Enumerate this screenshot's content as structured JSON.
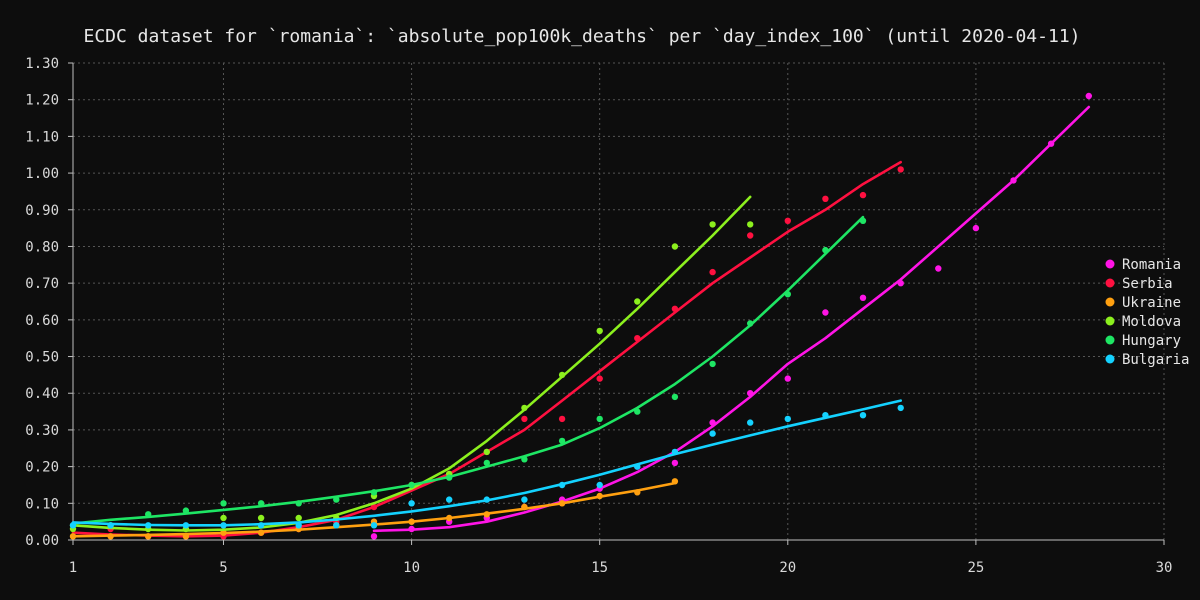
{
  "chart_data": {
    "type": "scatter",
    "title": "ECDC dataset for `romania`: `absolute_pop100k_deaths` per `day_index_100` (until 2020-04-11)",
    "xlabel": "",
    "ylabel": "",
    "xlim": [
      1,
      30
    ],
    "ylim": [
      0,
      1.3
    ],
    "x_ticks": [
      1,
      5,
      10,
      15,
      20,
      25,
      30
    ],
    "y_ticks": [
      0,
      0.1,
      0.2,
      0.3,
      0.4,
      0.5,
      0.6,
      0.7,
      0.8,
      0.9,
      1.0,
      1.1,
      1.2,
      1.3
    ],
    "y_tick_labels": [
      "0.00",
      "0.10",
      "0.20",
      "0.30",
      "0.40",
      "0.50",
      "0.60",
      "0.70",
      "0.80",
      "0.90",
      "1.00",
      "1.10",
      "1.20",
      "1.30"
    ],
    "grid": true,
    "legend_position": "right",
    "series": [
      {
        "name": "Romania",
        "color": "#ff14e6",
        "points": [
          [
            9,
            0.01
          ],
          [
            10,
            0.03
          ],
          [
            11,
            0.05
          ],
          [
            12,
            0.06
          ],
          [
            13,
            0.09
          ],
          [
            14,
            0.11
          ],
          [
            15,
            0.14
          ],
          [
            16,
            0.2
          ],
          [
            17,
            0.21
          ],
          [
            18,
            0.32
          ],
          [
            19,
            0.4
          ],
          [
            20,
            0.44
          ],
          [
            21,
            0.62
          ],
          [
            22,
            0.66
          ],
          [
            23,
            0.7
          ],
          [
            24,
            0.74
          ],
          [
            25,
            0.85
          ],
          [
            26,
            0.98
          ],
          [
            27,
            1.08
          ],
          [
            28,
            1.21
          ]
        ],
        "trend": [
          [
            9,
            0.025
          ],
          [
            10,
            0.028
          ],
          [
            11,
            0.035
          ],
          [
            12,
            0.05
          ],
          [
            13,
            0.075
          ],
          [
            14,
            0.105
          ],
          [
            15,
            0.14
          ],
          [
            16,
            0.185
          ],
          [
            17,
            0.24
          ],
          [
            18,
            0.31
          ],
          [
            19,
            0.39
          ],
          [
            20,
            0.48
          ],
          [
            21,
            0.55
          ],
          [
            22,
            0.63
          ],
          [
            23,
            0.71
          ],
          [
            24,
            0.8
          ],
          [
            25,
            0.89
          ],
          [
            26,
            0.98
          ],
          [
            27,
            1.08
          ],
          [
            28,
            1.18
          ]
        ]
      },
      {
        "name": "Serbia",
        "color": "#ff1040",
        "points": [
          [
            1,
            0.04
          ],
          [
            2,
            0.03
          ],
          [
            3,
            0.01
          ],
          [
            4,
            0.01
          ],
          [
            5,
            0.01
          ],
          [
            6,
            0.02
          ],
          [
            7,
            0.03
          ],
          [
            8,
            0.05
          ],
          [
            9,
            0.09
          ],
          [
            10,
            0.15
          ],
          [
            11,
            0.18
          ],
          [
            12,
            0.24
          ],
          [
            13,
            0.33
          ],
          [
            14,
            0.33
          ],
          [
            15,
            0.44
          ],
          [
            16,
            0.55
          ],
          [
            17,
            0.63
          ],
          [
            18,
            0.73
          ],
          [
            19,
            0.83
          ],
          [
            20,
            0.87
          ],
          [
            21,
            0.93
          ],
          [
            22,
            0.94
          ],
          [
            23,
            1.01
          ]
        ],
        "trend": [
          [
            1,
            0.02
          ],
          [
            2,
            0.015
          ],
          [
            3,
            0.012
          ],
          [
            4,
            0.01
          ],
          [
            5,
            0.012
          ],
          [
            6,
            0.02
          ],
          [
            7,
            0.035
          ],
          [
            8,
            0.055
          ],
          [
            9,
            0.09
          ],
          [
            10,
            0.135
          ],
          [
            11,
            0.18
          ],
          [
            12,
            0.24
          ],
          [
            13,
            0.3
          ],
          [
            14,
            0.38
          ],
          [
            15,
            0.46
          ],
          [
            16,
            0.54
          ],
          [
            17,
            0.62
          ],
          [
            18,
            0.7
          ],
          [
            19,
            0.77
          ],
          [
            20,
            0.84
          ],
          [
            21,
            0.9
          ],
          [
            22,
            0.97
          ],
          [
            23,
            1.03
          ]
        ]
      },
      {
        "name": "Ukraine",
        "color": "#ffa010",
        "points": [
          [
            1,
            0.01
          ],
          [
            2,
            0.01
          ],
          [
            3,
            0.01
          ],
          [
            4,
            0.01
          ],
          [
            5,
            0.02
          ],
          [
            6,
            0.02
          ],
          [
            7,
            0.03
          ],
          [
            8,
            0.04
          ],
          [
            9,
            0.05
          ],
          [
            10,
            0.05
          ],
          [
            11,
            0.06
          ],
          [
            12,
            0.07
          ],
          [
            13,
            0.09
          ],
          [
            14,
            0.1
          ],
          [
            15,
            0.12
          ],
          [
            16,
            0.13
          ],
          [
            17,
            0.16
          ]
        ],
        "trend": [
          [
            1,
            0.01
          ],
          [
            2,
            0.012
          ],
          [
            3,
            0.014
          ],
          [
            4,
            0.016
          ],
          [
            5,
            0.019
          ],
          [
            6,
            0.023
          ],
          [
            7,
            0.028
          ],
          [
            8,
            0.035
          ],
          [
            9,
            0.042
          ],
          [
            10,
            0.05
          ],
          [
            11,
            0.06
          ],
          [
            12,
            0.072
          ],
          [
            13,
            0.085
          ],
          [
            14,
            0.1
          ],
          [
            15,
            0.118
          ],
          [
            16,
            0.135
          ],
          [
            17,
            0.155
          ]
        ]
      },
      {
        "name": "Moldova",
        "color": "#8cf01e",
        "points": [
          [
            1,
            0.03
          ],
          [
            2,
            0.04
          ],
          [
            3,
            0.03
          ],
          [
            4,
            0.03
          ],
          [
            5,
            0.06
          ],
          [
            6,
            0.06
          ],
          [
            7,
            0.06
          ],
          [
            8,
            0.06
          ],
          [
            9,
            0.12
          ],
          [
            10,
            0.15
          ],
          [
            11,
            0.18
          ],
          [
            12,
            0.24
          ],
          [
            13,
            0.36
          ],
          [
            14,
            0.45
          ],
          [
            15,
            0.57
          ],
          [
            16,
            0.65
          ],
          [
            17,
            0.8
          ],
          [
            18,
            0.86
          ],
          [
            19,
            0.86
          ]
        ],
        "trend": [
          [
            1,
            0.04
          ],
          [
            2,
            0.033
          ],
          [
            3,
            0.028
          ],
          [
            4,
            0.026
          ],
          [
            5,
            0.028
          ],
          [
            6,
            0.034
          ],
          [
            7,
            0.047
          ],
          [
            8,
            0.068
          ],
          [
            9,
            0.1
          ],
          [
            10,
            0.14
          ],
          [
            11,
            0.195
          ],
          [
            12,
            0.27
          ],
          [
            13,
            0.355
          ],
          [
            14,
            0.445
          ],
          [
            15,
            0.535
          ],
          [
            16,
            0.63
          ],
          [
            17,
            0.73
          ],
          [
            18,
            0.83
          ],
          [
            19,
            0.935
          ]
        ]
      },
      {
        "name": "Hungary",
        "color": "#1ee664",
        "points": [
          [
            1,
            0.04
          ],
          [
            2,
            0.04
          ],
          [
            3,
            0.07
          ],
          [
            4,
            0.08
          ],
          [
            5,
            0.1
          ],
          [
            6,
            0.1
          ],
          [
            7,
            0.1
          ],
          [
            8,
            0.11
          ],
          [
            9,
            0.13
          ],
          [
            10,
            0.15
          ],
          [
            11,
            0.17
          ],
          [
            12,
            0.21
          ],
          [
            13,
            0.22
          ],
          [
            14,
            0.27
          ],
          [
            15,
            0.33
          ],
          [
            16,
            0.35
          ],
          [
            17,
            0.39
          ],
          [
            18,
            0.48
          ],
          [
            19,
            0.59
          ],
          [
            20,
            0.67
          ],
          [
            21,
            0.79
          ],
          [
            22,
            0.87
          ]
        ],
        "trend": [
          [
            1,
            0.045
          ],
          [
            2,
            0.055
          ],
          [
            3,
            0.063
          ],
          [
            4,
            0.072
          ],
          [
            5,
            0.082
          ],
          [
            6,
            0.092
          ],
          [
            7,
            0.104
          ],
          [
            8,
            0.118
          ],
          [
            9,
            0.133
          ],
          [
            10,
            0.15
          ],
          [
            11,
            0.172
          ],
          [
            12,
            0.2
          ],
          [
            13,
            0.228
          ],
          [
            14,
            0.26
          ],
          [
            15,
            0.305
          ],
          [
            16,
            0.36
          ],
          [
            17,
            0.425
          ],
          [
            18,
            0.5
          ],
          [
            19,
            0.585
          ],
          [
            20,
            0.68
          ],
          [
            21,
            0.78
          ],
          [
            22,
            0.88
          ]
        ]
      },
      {
        "name": "Bulgaria",
        "color": "#14d2ff",
        "points": [
          [
            1,
            0.04
          ],
          [
            2,
            0.04
          ],
          [
            3,
            0.04
          ],
          [
            4,
            0.04
          ],
          [
            5,
            0.04
          ],
          [
            6,
            0.04
          ],
          [
            7,
            0.04
          ],
          [
            8,
            0.04
          ],
          [
            9,
            0.04
          ],
          [
            10,
            0.1
          ],
          [
            11,
            0.11
          ],
          [
            12,
            0.11
          ],
          [
            13,
            0.11
          ],
          [
            14,
            0.15
          ],
          [
            15,
            0.15
          ],
          [
            16,
            0.2
          ],
          [
            17,
            0.24
          ],
          [
            18,
            0.29
          ],
          [
            19,
            0.32
          ],
          [
            20,
            0.33
          ],
          [
            21,
            0.34
          ],
          [
            22,
            0.34
          ],
          [
            23,
            0.36
          ]
        ],
        "trend": [
          [
            1,
            0.048
          ],
          [
            2,
            0.044
          ],
          [
            3,
            0.041
          ],
          [
            4,
            0.04
          ],
          [
            5,
            0.04
          ],
          [
            6,
            0.043
          ],
          [
            7,
            0.048
          ],
          [
            8,
            0.056
          ],
          [
            9,
            0.066
          ],
          [
            10,
            0.078
          ],
          [
            11,
            0.092
          ],
          [
            12,
            0.108
          ],
          [
            13,
            0.128
          ],
          [
            14,
            0.152
          ],
          [
            15,
            0.178
          ],
          [
            16,
            0.206
          ],
          [
            17,
            0.234
          ],
          [
            18,
            0.26
          ],
          [
            19,
            0.285
          ],
          [
            20,
            0.31
          ],
          [
            21,
            0.333
          ],
          [
            22,
            0.356
          ],
          [
            23,
            0.38
          ]
        ]
      }
    ]
  }
}
